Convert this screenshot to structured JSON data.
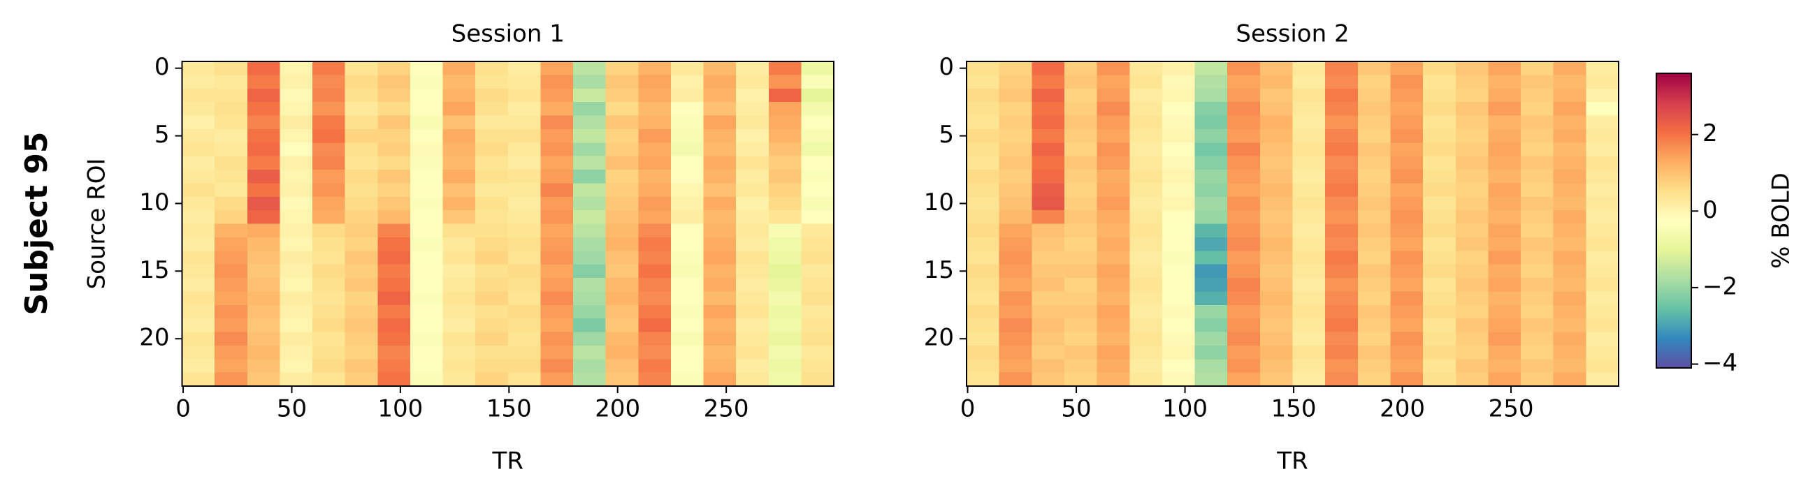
{
  "figure_label": "Subject 95",
  "colorbar": {
    "label": "% BOLD",
    "lim": [
      -4.1,
      3.6
    ],
    "ticks": [
      {
        "value": -4,
        "label": "−4"
      },
      {
        "value": -2,
        "label": "−2"
      },
      0,
      2
    ],
    "colors": [
      "#5e4fa2",
      "#3288bd",
      "#66c2a5",
      "#abdda4",
      "#e6f598",
      "#ffffbf",
      "#fee08b",
      "#fdae61",
      "#f46d43",
      "#d53e4f",
      "#9e0142"
    ]
  },
  "chart_data": [
    {
      "type": "heatmap",
      "title": "Session 1",
      "xlabel": "TR",
      "ylabel": "Source ROI",
      "xlim": [
        -0.5,
        299.5
      ],
      "ylim": [
        23.5,
        -0.5
      ],
      "xticks": [
        0,
        50,
        100,
        150,
        200,
        250
      ],
      "yticks": [
        0,
        5,
        10,
        15,
        20
      ],
      "x_edges": [
        -0.5,
        14.5,
        29.5,
        44.5,
        59.5,
        74.5,
        89.5,
        104.5,
        119.5,
        134.5,
        149.5,
        164.5,
        179.5,
        194.5,
        209.5,
        224.5,
        239.5,
        254.5,
        269.5,
        284.5,
        299.5
      ],
      "values": [
        [
          0.3,
          0.5,
          2.1,
          0.0,
          1.9,
          0.4,
          0.7,
          -0.2,
          1.3,
          0.5,
          0.2,
          1.4,
          -1.6,
          0.7,
          1.2,
          0.3,
          1.1,
          0.2,
          1.9,
          -0.8
        ],
        [
          0.2,
          0.3,
          1.9,
          0.1,
          1.7,
          0.6,
          0.9,
          -0.4,
          1.1,
          0.4,
          0.3,
          1.6,
          -1.8,
          0.9,
          1.4,
          0.1,
          1.3,
          0.3,
          1.6,
          -0.4
        ],
        [
          0.4,
          0.4,
          2.2,
          -0.1,
          1.8,
          0.5,
          0.8,
          -0.3,
          1.2,
          0.6,
          0.4,
          1.5,
          -1.4,
          0.8,
          1.3,
          0.2,
          1.2,
          0.1,
          2.2,
          -1.0
        ],
        [
          0.3,
          0.5,
          2.0,
          0.0,
          1.6,
          0.3,
          0.6,
          -0.2,
          1.4,
          0.5,
          0.2,
          1.3,
          -2.0,
          0.6,
          1.1,
          -0.2,
          1.0,
          0.2,
          1.4,
          -0.6
        ],
        [
          0.1,
          0.4,
          1.8,
          0.2,
          1.9,
          0.5,
          0.9,
          -0.5,
          1.0,
          0.3,
          0.3,
          1.7,
          -1.7,
          0.9,
          1.2,
          -0.4,
          1.4,
          0.3,
          1.3,
          -0.3
        ],
        [
          0.3,
          0.2,
          2.0,
          0.0,
          2.0,
          0.7,
          0.7,
          -0.3,
          1.3,
          0.5,
          0.5,
          1.5,
          -1.5,
          0.7,
          1.5,
          -0.5,
          1.2,
          0.1,
          1.2,
          -0.5
        ],
        [
          0.4,
          0.3,
          2.1,
          -0.2,
          1.7,
          0.5,
          0.8,
          -0.1,
          1.2,
          0.6,
          0.3,
          1.6,
          -1.9,
          0.8,
          1.3,
          -0.6,
          1.1,
          0.2,
          1.0,
          -0.7
        ],
        [
          0.2,
          0.5,
          1.9,
          0.1,
          1.8,
          0.4,
          0.6,
          -0.4,
          1.1,
          0.4,
          0.2,
          1.4,
          -1.6,
          1.0,
          1.4,
          -0.3,
          1.3,
          0.4,
          0.8,
          -0.2
        ],
        [
          0.3,
          0.4,
          2.3,
          0.0,
          1.5,
          0.6,
          0.9,
          -0.3,
          1.3,
          0.5,
          0.4,
          1.5,
          -2.1,
          0.7,
          1.2,
          -0.2,
          1.2,
          0.2,
          0.9,
          -0.4
        ],
        [
          0.5,
          0.3,
          2.0,
          0.1,
          1.6,
          0.5,
          0.7,
          -0.2,
          1.0,
          0.3,
          0.3,
          1.8,
          -1.5,
          0.8,
          1.3,
          0.0,
          1.0,
          0.3,
          0.7,
          -0.3
        ],
        [
          0.3,
          0.6,
          2.4,
          -0.1,
          1.4,
          0.6,
          0.9,
          -0.4,
          1.2,
          0.5,
          0.2,
          1.5,
          -1.7,
          0.9,
          1.5,
          0.1,
          1.3,
          0.1,
          0.6,
          -0.5
        ],
        [
          0.2,
          0.7,
          2.2,
          0.0,
          1.3,
          0.7,
          1.1,
          -0.3,
          0.9,
          0.4,
          0.3,
          1.6,
          -1.4,
          1.0,
          1.4,
          0.2,
          1.1,
          0.2,
          0.4,
          -0.2
        ],
        [
          0.3,
          1.2,
          1.3,
          0.1,
          0.6,
          0.8,
          1.8,
          -0.2,
          0.5,
          0.5,
          0.4,
          1.4,
          -1.6,
          1.1,
          1.7,
          -0.2,
          1.2,
          0.3,
          -0.5,
          0.3
        ],
        [
          0.2,
          1.4,
          1.1,
          0.0,
          0.5,
          0.7,
          2.0,
          -0.4,
          0.3,
          0.6,
          0.5,
          1.5,
          -1.8,
          1.2,
          1.9,
          -0.3,
          1.3,
          0.2,
          -0.7,
          0.4
        ],
        [
          0.4,
          1.5,
          1.0,
          0.2,
          0.4,
          0.9,
          2.1,
          -0.3,
          0.4,
          0.7,
          0.4,
          1.6,
          -1.9,
          1.0,
          1.8,
          -0.4,
          1.4,
          0.4,
          -0.8,
          0.5
        ],
        [
          0.3,
          1.6,
          0.9,
          0.1,
          0.6,
          0.8,
          1.9,
          -0.2,
          0.2,
          0.5,
          0.6,
          1.4,
          -2.2,
          0.9,
          2.0,
          -0.5,
          1.2,
          0.3,
          -1.0,
          0.3
        ],
        [
          0.2,
          1.5,
          1.0,
          0.0,
          0.5,
          0.9,
          2.0,
          -0.3,
          0.3,
          0.6,
          0.5,
          1.5,
          -1.7,
          1.1,
          1.8,
          -0.2,
          1.3,
          0.2,
          -0.9,
          0.4
        ],
        [
          0.4,
          1.4,
          1.1,
          0.2,
          0.4,
          0.7,
          2.2,
          -0.4,
          0.4,
          0.7,
          0.4,
          1.7,
          -1.8,
          1.2,
          1.7,
          -0.3,
          1.1,
          0.3,
          -0.6,
          0.5
        ],
        [
          0.3,
          1.6,
          1.0,
          0.1,
          0.5,
          0.8,
          1.9,
          -0.2,
          0.3,
          0.5,
          0.6,
          1.5,
          -2.0,
          1.0,
          1.9,
          -0.4,
          1.4,
          0.4,
          -0.8,
          0.3
        ],
        [
          0.2,
          1.5,
          0.9,
          0.0,
          0.6,
          0.9,
          2.1,
          -0.3,
          0.2,
          0.6,
          0.5,
          1.4,
          -2.3,
          0.9,
          2.1,
          -0.3,
          1.2,
          0.2,
          -0.7,
          0.4
        ],
        [
          0.4,
          1.7,
          1.0,
          0.2,
          0.4,
          0.8,
          2.0,
          -0.4,
          0.4,
          0.7,
          0.4,
          1.6,
          -1.9,
          1.1,
          1.8,
          -0.5,
          1.3,
          0.3,
          -0.9,
          0.5
        ],
        [
          0.3,
          1.5,
          1.1,
          0.1,
          0.5,
          0.7,
          1.8,
          -0.2,
          0.3,
          0.5,
          0.5,
          1.5,
          -1.6,
          1.2,
          1.7,
          -0.2,
          1.1,
          0.4,
          -0.6,
          0.3
        ],
        [
          0.2,
          1.4,
          1.0,
          0.0,
          0.6,
          0.9,
          1.9,
          -0.3,
          0.4,
          0.6,
          0.6,
          1.7,
          -1.8,
          1.0,
          1.9,
          -0.3,
          1.2,
          0.2,
          -0.8,
          0.4
        ],
        [
          0.4,
          1.6,
          0.9,
          0.2,
          0.4,
          0.8,
          2.0,
          -0.4,
          0.3,
          0.7,
          0.4,
          1.5,
          -1.7,
          0.9,
          1.8,
          -0.4,
          1.4,
          0.3,
          -0.7,
          0.5
        ]
      ]
    },
    {
      "type": "heatmap",
      "title": "Session 2",
      "xlabel": "TR",
      "xlim": [
        -0.5,
        299.5
      ],
      "ylim": [
        23.5,
        -0.5
      ],
      "xticks": [
        0,
        50,
        100,
        150,
        200,
        250
      ],
      "yticks": [
        0,
        5,
        10,
        15,
        20
      ],
      "x_edges": [
        -0.5,
        14.5,
        29.5,
        44.5,
        59.5,
        74.5,
        89.5,
        104.5,
        119.5,
        134.5,
        149.5,
        164.5,
        179.5,
        194.5,
        209.5,
        224.5,
        239.5,
        254.5,
        269.5,
        284.5,
        299.5
      ],
      "values": [
        [
          0.5,
          0.7,
          2.1,
          0.8,
          1.6,
          0.3,
          0.1,
          -1.5,
          1.6,
          1.0,
          0.3,
          1.8,
          0.9,
          1.4,
          0.6,
          0.9,
          1.4,
          0.7,
          1.3,
          0.2
        ],
        [
          0.4,
          0.8,
          1.9,
          0.9,
          1.4,
          0.4,
          -0.1,
          -1.7,
          1.4,
          1.1,
          0.2,
          1.7,
          0.7,
          1.6,
          0.4,
          0.8,
          1.2,
          0.9,
          1.1,
          0.3
        ],
        [
          0.6,
          0.9,
          2.2,
          0.7,
          1.5,
          0.2,
          0.0,
          -1.8,
          1.5,
          0.9,
          0.4,
          1.9,
          0.8,
          1.5,
          0.5,
          0.7,
          1.3,
          0.8,
          1.2,
          0.1
        ],
        [
          0.5,
          0.7,
          2.0,
          0.8,
          1.7,
          0.3,
          -0.2,
          -2.2,
          1.7,
          1.0,
          0.3,
          1.8,
          0.9,
          1.4,
          0.6,
          0.9,
          1.5,
          0.7,
          1.4,
          -0.3
        ],
        [
          0.4,
          0.8,
          2.1,
          0.9,
          1.5,
          0.4,
          -0.1,
          -2.3,
          1.6,
          1.2,
          0.2,
          1.6,
          0.8,
          1.5,
          0.4,
          0.8,
          1.2,
          0.9,
          1.2,
          0.2
        ],
        [
          0.6,
          0.7,
          1.9,
          0.8,
          1.4,
          0.3,
          0.0,
          -2.1,
          1.5,
          1.1,
          0.3,
          1.8,
          0.7,
          1.6,
          0.5,
          0.7,
          1.3,
          0.8,
          1.3,
          0.3
        ],
        [
          0.5,
          0.8,
          2.2,
          0.7,
          1.6,
          0.2,
          -0.2,
          -2.4,
          1.8,
          1.0,
          0.4,
          1.9,
          0.9,
          1.4,
          0.6,
          0.8,
          1.4,
          0.7,
          1.1,
          0.2
        ],
        [
          0.4,
          0.9,
          2.0,
          0.9,
          1.5,
          0.3,
          -0.1,
          -2.2,
          1.6,
          0.9,
          0.3,
          1.7,
          0.8,
          1.5,
          0.4,
          0.9,
          1.3,
          0.9,
          1.2,
          0.4
        ],
        [
          0.6,
          0.8,
          2.1,
          0.8,
          1.3,
          0.4,
          0.0,
          -2.0,
          1.5,
          1.0,
          0.2,
          1.8,
          0.7,
          1.6,
          0.5,
          0.8,
          1.2,
          0.8,
          1.3,
          0.3
        ],
        [
          0.5,
          0.9,
          2.3,
          0.7,
          1.4,
          0.3,
          -0.1,
          -2.1,
          1.4,
          1.1,
          0.3,
          1.9,
          0.8,
          1.4,
          0.6,
          0.7,
          1.4,
          0.7,
          1.2,
          0.2
        ],
        [
          0.4,
          1.0,
          2.4,
          0.8,
          1.5,
          0.2,
          0.0,
          -1.9,
          1.6,
          1.0,
          0.4,
          1.7,
          0.9,
          1.5,
          0.4,
          0.8,
          1.3,
          0.9,
          1.1,
          0.3
        ],
        [
          0.5,
          1.1,
          1.8,
          0.9,
          1.3,
          0.3,
          -0.2,
          -2.0,
          1.5,
          0.9,
          0.3,
          1.6,
          0.8,
          1.6,
          0.5,
          0.9,
          1.2,
          0.8,
          1.3,
          0.2
        ],
        [
          0.6,
          1.4,
          1.0,
          0.8,
          1.2,
          0.4,
          -0.3,
          -2.7,
          1.6,
          1.0,
          0.2,
          1.8,
          0.9,
          1.5,
          0.6,
          0.8,
          1.4,
          0.7,
          1.2,
          0.3
        ],
        [
          0.5,
          1.5,
          0.9,
          0.7,
          1.3,
          0.3,
          -0.2,
          -2.9,
          1.7,
          1.1,
          0.3,
          1.7,
          0.8,
          1.4,
          0.4,
          0.9,
          1.3,
          0.9,
          1.1,
          0.4
        ],
        [
          0.4,
          1.6,
          0.8,
          0.8,
          1.2,
          0.2,
          -0.4,
          -2.6,
          1.5,
          1.0,
          0.4,
          1.9,
          0.7,
          1.6,
          0.5,
          0.7,
          1.5,
          0.8,
          1.3,
          0.2
        ],
        [
          0.6,
          1.5,
          0.9,
          0.9,
          1.4,
          0.3,
          -0.3,
          -3.1,
          1.6,
          0.9,
          0.3,
          1.8,
          0.9,
          1.5,
          0.6,
          0.8,
          1.3,
          0.7,
          1.2,
          0.3
        ],
        [
          0.5,
          1.4,
          1.0,
          0.7,
          1.3,
          0.4,
          -0.2,
          -3.0,
          1.8,
          1.0,
          0.2,
          1.6,
          0.8,
          1.4,
          0.4,
          0.9,
          1.4,
          0.9,
          1.1,
          0.4
        ],
        [
          0.4,
          1.6,
          0.8,
          0.8,
          1.2,
          0.3,
          -0.3,
          -2.8,
          1.7,
          1.1,
          0.3,
          1.7,
          0.7,
          1.6,
          0.5,
          0.8,
          1.2,
          0.8,
          1.3,
          0.2
        ],
        [
          0.6,
          1.5,
          0.9,
          0.9,
          1.4,
          0.2,
          -0.1,
          -2.0,
          1.5,
          1.0,
          0.4,
          1.8,
          0.9,
          1.5,
          0.6,
          0.7,
          1.3,
          0.7,
          1.2,
          0.3
        ],
        [
          0.5,
          1.7,
          1.0,
          0.8,
          1.3,
          0.3,
          -0.2,
          -2.2,
          1.6,
          0.9,
          0.3,
          1.9,
          0.8,
          1.4,
          0.4,
          0.9,
          1.4,
          0.9,
          1.1,
          0.4
        ],
        [
          0.4,
          1.6,
          0.9,
          0.7,
          1.2,
          0.4,
          -0.1,
          -1.9,
          1.7,
          1.0,
          0.2,
          1.7,
          0.7,
          1.6,
          0.5,
          0.8,
          1.5,
          0.8,
          1.3,
          0.2
        ],
        [
          0.6,
          1.5,
          0.8,
          0.9,
          1.4,
          0.3,
          0.0,
          -2.1,
          1.5,
          1.1,
          0.4,
          1.8,
          0.9,
          1.5,
          0.6,
          0.7,
          1.3,
          0.7,
          1.2,
          0.3
        ],
        [
          0.5,
          1.4,
          1.0,
          0.8,
          1.3,
          0.2,
          -0.2,
          -1.8,
          1.6,
          1.0,
          0.3,
          1.6,
          0.8,
          1.4,
          0.4,
          0.9,
          1.2,
          0.9,
          1.1,
          0.4
        ],
        [
          0.4,
          1.6,
          0.9,
          0.7,
          1.2,
          0.3,
          -0.1,
          -1.7,
          1.4,
          0.9,
          0.2,
          1.7,
          0.7,
          1.6,
          0.5,
          0.8,
          1.4,
          0.8,
          1.3,
          0.2
        ]
      ]
    }
  ]
}
